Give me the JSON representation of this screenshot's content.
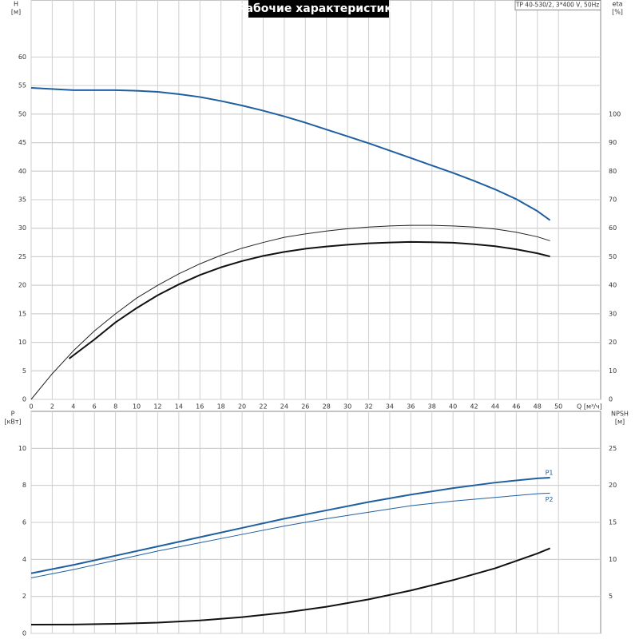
{
  "chart_data": [
    {
      "type": "line",
      "title": "Рабочие характеристики",
      "subtitle": "TP 40-530/2, 3*400 V, 50Hz",
      "x_label": "Q [м³/ч]",
      "y_label": "H",
      "y_unit": "[м]",
      "y2_label": "eta",
      "y2_unit": "[%]",
      "xlim": [
        0,
        54
      ],
      "xticks": [
        0,
        2,
        4,
        6,
        8,
        10,
        12,
        14,
        16,
        18,
        20,
        22,
        24,
        26,
        28,
        30,
        32,
        34,
        36,
        38,
        40,
        42,
        44,
        46,
        48,
        50
      ],
      "show_xtick_labels": true,
      "ylim": [
        0,
        70
      ],
      "yticks": [
        0,
        5,
        10,
        15,
        20,
        25,
        30,
        35,
        40,
        45,
        50,
        55,
        60
      ],
      "y2lim": [
        0,
        140
      ],
      "y2ticks": [
        0,
        10,
        20,
        30,
        40,
        50,
        60,
        70,
        80,
        90,
        100
      ],
      "grid": true,
      "series": [
        {
          "color": "#1f5fa0",
          "width": 2,
          "x": [
            0,
            4,
            8,
            10,
            12,
            14,
            16,
            18,
            20,
            22,
            24,
            26,
            28,
            30,
            32,
            34,
            36,
            38,
            40,
            42,
            44,
            46,
            48,
            49.2
          ],
          "values": [
            54.6,
            54.2,
            54.2,
            54.1,
            53.9,
            53.5,
            53.0,
            52.3,
            51.5,
            50.6,
            49.6,
            48.5,
            47.3,
            46.1,
            44.9,
            43.6,
            42.3,
            41.0,
            39.7,
            38.3,
            36.8,
            35.1,
            33.0,
            31.4
          ]
        },
        {
          "color": "#222222",
          "width": 1,
          "axis": "y2",
          "x": [
            0,
            2,
            4,
            6,
            8,
            10,
            12,
            14,
            16,
            18,
            20,
            22,
            24,
            26,
            28,
            30,
            32,
            34,
            36,
            38,
            40,
            42,
            44,
            46,
            48,
            49.2
          ],
          "values": [
            0,
            9,
            17,
            24,
            30,
            35.5,
            40,
            44,
            47.5,
            50.5,
            53,
            55,
            56.8,
            58,
            59,
            59.8,
            60.4,
            60.8,
            61,
            61,
            60.8,
            60.4,
            59.7,
            58.6,
            57,
            55.6
          ]
        },
        {
          "color": "#111111",
          "width": 2,
          "axis": "y2",
          "x": [
            3.6,
            6,
            8,
            10,
            12,
            14,
            16,
            18,
            20,
            22,
            24,
            26,
            28,
            30,
            32,
            34,
            36,
            38,
            40,
            42,
            44,
            46,
            48,
            49.2
          ],
          "values": [
            14.3,
            21,
            27,
            32,
            36.5,
            40.3,
            43.6,
            46.3,
            48.5,
            50.3,
            51.7,
            52.8,
            53.6,
            54.2,
            54.7,
            55,
            55.2,
            55.1,
            54.9,
            54.4,
            53.7,
            52.6,
            51.2,
            50.1
          ]
        }
      ]
    },
    {
      "type": "line",
      "y_label": "P",
      "y_unit": "[кВт]",
      "y2_label": "NPSH",
      "y2_unit": "[м]",
      "xlim": [
        0,
        54
      ],
      "xticks": [
        0,
        2,
        4,
        6,
        8,
        10,
        12,
        14,
        16,
        18,
        20,
        22,
        24,
        26,
        28,
        30,
        32,
        34,
        36,
        38,
        40,
        42,
        44,
        46,
        48,
        50
      ],
      "show_xtick_labels": false,
      "ylim": [
        0,
        12
      ],
      "yticks": [
        0,
        2,
        4,
        6,
        8,
        10
      ],
      "y2lim": [
        0,
        30
      ],
      "y2ticks": [
        5,
        10,
        15,
        20,
        25
      ],
      "grid": true,
      "series": [
        {
          "name": "P1",
          "color": "#1f5fa0",
          "width": 2,
          "x": [
            0,
            4,
            8,
            12,
            16,
            20,
            24,
            28,
            32,
            36,
            40,
            44,
            48,
            49.2
          ],
          "values": [
            3.25,
            3.7,
            4.2,
            4.7,
            5.2,
            5.7,
            6.2,
            6.65,
            7.1,
            7.5,
            7.85,
            8.15,
            8.38,
            8.42
          ]
        },
        {
          "name": "P2",
          "color": "#1f5fa0",
          "width": 1,
          "x": [
            0,
            4,
            8,
            12,
            16,
            20,
            24,
            28,
            32,
            36,
            40,
            44,
            48,
            49.2
          ],
          "values": [
            3.0,
            3.45,
            3.95,
            4.45,
            4.9,
            5.35,
            5.8,
            6.2,
            6.55,
            6.9,
            7.15,
            7.35,
            7.55,
            7.58
          ]
        },
        {
          "color": "#111111",
          "width": 2,
          "axis": "y2",
          "x": [
            0,
            4,
            8,
            12,
            16,
            20,
            24,
            28,
            32,
            36,
            40,
            44,
            48,
            49.2
          ],
          "values": [
            1.19,
            1.2,
            1.3,
            1.45,
            1.75,
            2.2,
            2.8,
            3.6,
            4.6,
            5.8,
            7.2,
            8.8,
            10.8,
            11.5
          ]
        }
      ]
    }
  ]
}
